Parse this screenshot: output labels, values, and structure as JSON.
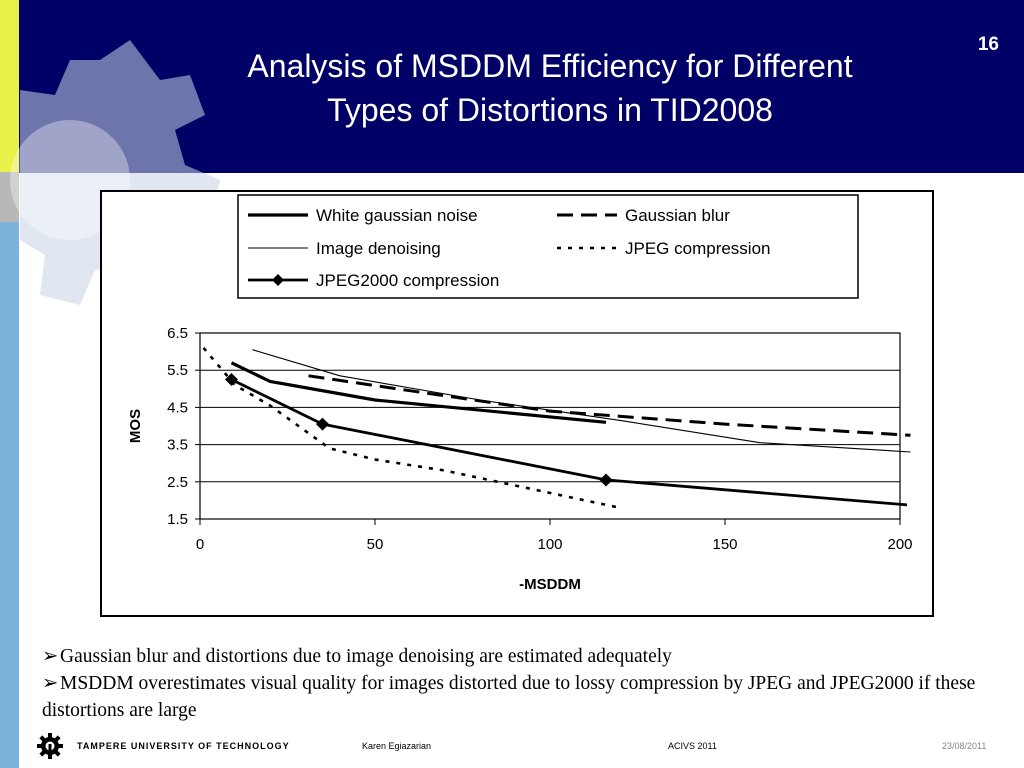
{
  "slide": {
    "title_line1": "Analysis of MSDDM Efficiency for Different",
    "title_line2": "Types of Distortions in TID2008",
    "number": "16"
  },
  "bullets": [
    "Gaussian blur and distortions due to image denoising are estimated adequately",
    "MSDDM overestimates visual quality for images distorted due to lossy compression by JPEG and JPEG2000 if these distortions are large"
  ],
  "footer": {
    "org": "TAMPERE UNIVERSITY OF TECHNOLOGY",
    "author": "Karen Egiazarian",
    "conference": "ACIVS 2011",
    "date": "23/08/2011"
  },
  "colors": {
    "header_bg": "#000066",
    "stripe_lime": "#e9f04a",
    "stripe_blue": "#7bb3dd"
  },
  "chart_data": {
    "type": "line",
    "xlabel": "-MSDDM",
    "ylabel": "MOS",
    "xlim": [
      0,
      200
    ],
    "ylim": [
      1.5,
      6.5
    ],
    "xticks": [
      "0",
      "50",
      "100",
      "150",
      "200"
    ],
    "yticks": [
      "1.5",
      "2.5",
      "3.5",
      "4.5",
      "5.5",
      "6.5"
    ],
    "grid": "horizontal",
    "legend_position": "top",
    "series": [
      {
        "name": "White gaussian noise",
        "style": "thick-solid",
        "x": [
          9,
          20,
          50,
          116
        ],
        "y": [
          5.7,
          5.2,
          4.7,
          4.1
        ]
      },
      {
        "name": "Gaussian blur",
        "style": "dashed",
        "x": [
          31,
          60,
          100,
          150,
          203
        ],
        "y": [
          5.35,
          4.95,
          4.4,
          4.05,
          3.75
        ]
      },
      {
        "name": "Image denoising",
        "style": "thin-solid",
        "x": [
          15,
          40,
          80,
          120,
          160,
          203
        ],
        "y": [
          6.05,
          5.35,
          4.7,
          4.15,
          3.55,
          3.3
        ]
      },
      {
        "name": "JPEG compression",
        "style": "dotted",
        "x": [
          1,
          10,
          20,
          37,
          50,
          70,
          90,
          110,
          120
        ],
        "y": [
          6.1,
          5.1,
          4.55,
          3.4,
          3.1,
          2.8,
          2.4,
          2.0,
          1.8
        ]
      },
      {
        "name": "JPEG2000  compression",
        "style": "solid-diamond",
        "x": [
          9,
          35,
          116,
          202
        ],
        "y": [
          5.25,
          4.05,
          2.55,
          1.88
        ]
      }
    ]
  }
}
